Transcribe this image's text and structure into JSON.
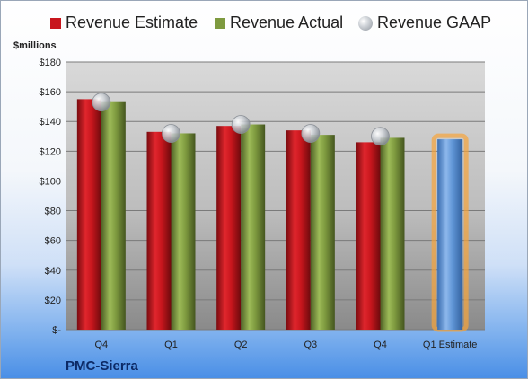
{
  "company": "PMC-Sierra",
  "colors": {
    "estimate": "#c8161d",
    "actual": "#7e9a3f",
    "gaap": "#b8bec5",
    "future_estimate": "#5f95d6",
    "highlight_glow": "#f6a43b"
  },
  "chart_data": {
    "type": "bar",
    "ylabel": "$millions",
    "ylim": [
      0,
      180
    ],
    "yticks": [
      0,
      20,
      40,
      60,
      80,
      100,
      120,
      140,
      160,
      180
    ],
    "ytick_labels": [
      "$-",
      "$20",
      "$40",
      "$60",
      "$80",
      "$100",
      "$120",
      "$140",
      "$160",
      "$180"
    ],
    "categories": [
      "Q4",
      "Q1",
      "Q2",
      "Q3",
      "Q4",
      "Q1 Estimate"
    ],
    "grid": true,
    "legend_position": "top",
    "series": [
      {
        "name": "Revenue Estimate",
        "type": "bar",
        "values": [
          155,
          133,
          137,
          134,
          126,
          null
        ]
      },
      {
        "name": "Revenue Actual",
        "type": "bar",
        "values": [
          153,
          132,
          138,
          131,
          129,
          null
        ]
      },
      {
        "name": "Revenue GAAP",
        "type": "marker",
        "values": [
          153,
          132,
          138,
          132,
          130,
          null
        ]
      }
    ],
    "forecast": {
      "category": "Q1 Estimate",
      "value": 128
    }
  }
}
